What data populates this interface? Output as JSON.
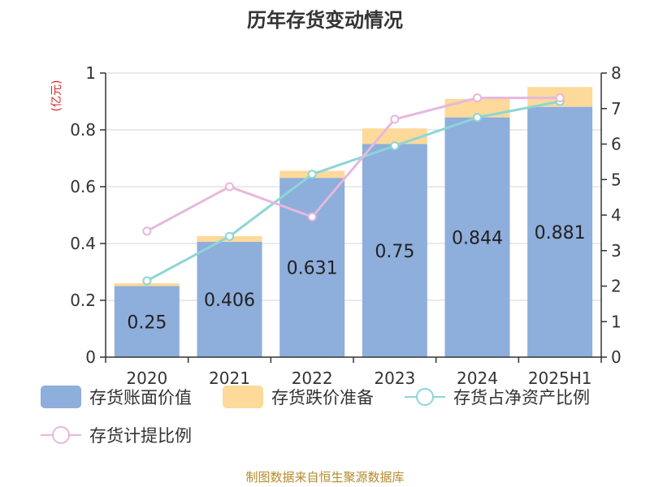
{
  "title": "历年存货变动情况",
  "source": "制图数据来自恒生聚源数据库",
  "colors": {
    "book_value": "#8eaedb",
    "provision": "#fdd99a",
    "net_asset_ratio": "#8dd5d6",
    "provision_ratio": "#e6b8dc",
    "unit_text": "#d9252b",
    "source_text": "#b58a2b"
  },
  "chart_data": {
    "type": "bar",
    "title": "历年存货变动情况",
    "categories": [
      "2020",
      "2021",
      "2022",
      "2023",
      "2024",
      "2025H1"
    ],
    "y_left": {
      "unit": "(亿元)",
      "ylim": [
        0,
        1
      ],
      "ticks": [
        "0",
        "0.2",
        "0.4",
        "0.6",
        "0.8",
        "1"
      ]
    },
    "y_right": {
      "ylim": [
        0,
        8
      ],
      "ticks": [
        "0",
        "1",
        "2",
        "3",
        "4",
        "5",
        "6",
        "7",
        "8"
      ]
    },
    "grid": true,
    "legend_position": "bottom",
    "series": [
      {
        "name": "存货账面价值",
        "kind": "bar",
        "stack": "inv",
        "axis": "left",
        "values": [
          0.25,
          0.406,
          0.631,
          0.75,
          0.844,
          0.881
        ],
        "labels": [
          "0.25",
          "0.406",
          "0.631",
          "0.75",
          "0.844",
          "0.881"
        ]
      },
      {
        "name": "存货跌价准备",
        "kind": "bar",
        "stack": "inv",
        "axis": "left",
        "values": [
          0.01,
          0.02,
          0.025,
          0.055,
          0.065,
          0.07
        ]
      },
      {
        "name": "存货占净资产比例",
        "kind": "line",
        "axis": "right",
        "values": [
          2.15,
          3.4,
          5.15,
          5.95,
          6.75,
          7.2
        ]
      },
      {
        "name": "存货计提比例",
        "kind": "line",
        "axis": "right",
        "values": [
          3.55,
          4.8,
          3.95,
          6.7,
          7.3,
          7.3
        ]
      }
    ]
  }
}
